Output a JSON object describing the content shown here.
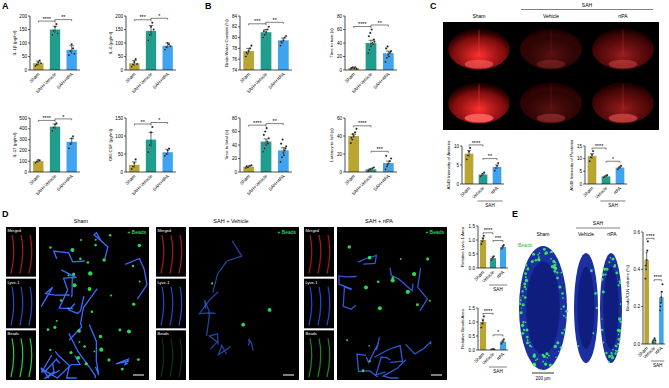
{
  "chart_data": [
    {
      "type": "bar",
      "ylabel": "IL-1β (pg/ml)",
      "categories": [
        "Sham",
        "SAH+Vehicle",
        "SAH+rtPA"
      ],
      "values": [
        25,
        150,
        75
      ],
      "errors": [
        8,
        12,
        15
      ],
      "points": [
        [
          15,
          20,
          28,
          35,
          25
        ],
        [
          130,
          145,
          160,
          170,
          135
        ],
        [
          55,
          70,
          95,
          80,
          60
        ]
      ],
      "colors": [
        "#b9a532",
        "#1f9e8e",
        "#3ea4ef"
      ],
      "ylim": [
        0,
        200
      ],
      "yticks": [
        0,
        50,
        100,
        150,
        200
      ],
      "annotations": [
        {
          "between": [
            "Sham",
            "SAH+Vehicle"
          ],
          "label": "****"
        },
        {
          "between": [
            "SAH+Vehicle",
            "SAH+rtPA"
          ],
          "label": "**"
        }
      ]
    },
    {
      "type": "bar",
      "ylabel": "IL-6 (pg/ml)",
      "categories": [
        "Sham",
        "SAH+Vehicle",
        "SAH+rtPA"
      ],
      "values": [
        25,
        145,
        90
      ],
      "errors": [
        10,
        20,
        10
      ],
      "points": [
        [
          12,
          20,
          30,
          40,
          22
        ],
        [
          110,
          130,
          160,
          175,
          150
        ],
        [
          75,
          85,
          100,
          95,
          88
        ]
      ],
      "colors": [
        "#b9a532",
        "#1f9e8e",
        "#3ea4ef"
      ],
      "ylim": [
        0,
        200
      ],
      "yticks": [
        0,
        50,
        100,
        150,
        200
      ],
      "annotations": [
        {
          "between": [
            "Sham",
            "SAH+Vehicle"
          ],
          "label": "***"
        },
        {
          "between": [
            "SAH+Vehicle",
            "SAH+rtPA"
          ],
          "label": "*"
        }
      ]
    },
    {
      "type": "bar",
      "ylabel": "IL-17 (pg/ml)",
      "categories": [
        "Sham",
        "SAH+Vehicle",
        "SAH+rtPA"
      ],
      "values": [
        100,
        420,
        280
      ],
      "errors": [
        10,
        25,
        30
      ],
      "points": [
        [
          85,
          95,
          110,
          105
        ],
        [
          380,
          410,
          440,
          450
        ],
        [
          220,
          260,
          310,
          330
        ]
      ],
      "colors": [
        "#b9a532",
        "#1f9e8e",
        "#3ea4ef"
      ],
      "ylim": [
        0,
        500
      ],
      "yticks": [
        0,
        100,
        200,
        300,
        400,
        500
      ],
      "annotations": [
        {
          "between": [
            "Sham",
            "SAH+Vehicle"
          ],
          "label": "****"
        },
        {
          "between": [
            "SAH+Vehicle",
            "SAH+rtPA"
          ],
          "label": "*"
        }
      ]
    },
    {
      "type": "bar",
      "ylabel": "GM-CSF (pg/ml)",
      "categories": [
        "Sham",
        "SAH+Vehicle",
        "SAH+rtPA"
      ],
      "values": [
        20,
        90,
        55
      ],
      "errors": [
        8,
        20,
        8
      ],
      "points": [
        [
          8,
          15,
          25,
          35
        ],
        [
          55,
          75,
          110,
          125
        ],
        [
          45,
          50,
          60,
          65
        ]
      ],
      "colors": [
        "#b9a532",
        "#1f9e8e",
        "#3ea4ef"
      ],
      "ylim": [
        0,
        150
      ],
      "yticks": [
        0,
        50,
        100,
        150
      ],
      "annotations": [
        {
          "between": [
            "Sham",
            "SAH+Vehicle"
          ],
          "label": "**"
        },
        {
          "between": [
            "SAH+Vehicle",
            "SAH+rtPA"
          ],
          "label": "*"
        }
      ]
    },
    {
      "type": "bar",
      "ylabel": "Brain Water Content (%)",
      "categories": [
        "Sham",
        "SAH+Vehicle",
        "SAH+rtPA"
      ],
      "values": [
        77.5,
        81,
        79.5
      ],
      "errors": [
        0.5,
        0.5,
        0.4
      ],
      "points": [
        [
          76.5,
          77,
          77.5,
          78,
          78.5,
          77.2
        ],
        [
          80,
          80.5,
          81,
          81.5,
          82,
          81.2
        ],
        [
          78.5,
          79,
          79.5,
          80,
          80.3,
          79.2
        ]
      ],
      "colors": [
        "#b9a532",
        "#1f9e8e",
        "#3ea4ef"
      ],
      "ylim": [
        74,
        84
      ],
      "yticks": [
        74,
        76,
        78,
        80,
        82,
        84
      ],
      "annotations": [
        {
          "between": [
            "Sham",
            "SAH+Vehicle"
          ],
          "label": "***"
        },
        {
          "between": [
            "SAH+Vehicle",
            "SAH+rtPA"
          ],
          "label": "**"
        }
      ]
    },
    {
      "type": "bar",
      "ylabel": "Time to turn (s)",
      "categories": [
        "Sham",
        "SAH+Vehicle",
        "SAH+rtPA"
      ],
      "values": [
        3,
        40,
        25
      ],
      "errors": [
        0.5,
        4,
        3
      ],
      "points": [
        [
          2,
          3,
          3,
          4,
          2,
          3,
          4,
          3
        ],
        [
          25,
          30,
          35,
          40,
          45,
          50,
          55,
          60,
          38,
          42
        ],
        [
          12,
          18,
          22,
          25,
          28,
          32,
          35,
          20,
          27
        ]
      ],
      "colors": [
        "#b9a532",
        "#1f9e8e",
        "#3ea4ef"
      ],
      "ylim": [
        0,
        80
      ],
      "yticks": [
        0,
        20,
        40,
        60,
        80
      ],
      "annotations": [
        {
          "between": [
            "Sham",
            "SAH+Vehicle"
          ],
          "label": "****"
        },
        {
          "between": [
            "SAH+Vehicle",
            "SAH+rtPA"
          ],
          "label": "**"
        }
      ]
    },
    {
      "type": "bar",
      "ylabel": "Time to total (s)",
      "categories": [
        "Sham",
        "SAH+Vehicle",
        "SAH+rtPA"
      ],
      "values": [
        8,
        45,
        32
      ],
      "errors": [
        1,
        4,
        4
      ],
      "points": [
        [
          6,
          7,
          8,
          9,
          10,
          8,
          7
        ],
        [
          30,
          35,
          40,
          45,
          50,
          55,
          60,
          65,
          42
        ],
        [
          15,
          22,
          28,
          32,
          38,
          42,
          48,
          25,
          35
        ]
      ],
      "colors": [
        "#b9a532",
        "#1f9e8e",
        "#3ea4ef"
      ],
      "ylim": [
        0,
        80
      ],
      "yticks": [
        0,
        20,
        40,
        60,
        80
      ],
      "annotations": [
        {
          "between": [
            "Sham",
            "SAH+Vehicle"
          ],
          "label": "****"
        },
        {
          "between": [
            "SAH+Vehicle",
            "SAH+rtPA"
          ],
          "label": "**"
        }
      ]
    },
    {
      "type": "bar",
      "ylabel": "Latency to fall (s)",
      "categories": [
        "Sham",
        "SAH+Vehicle",
        "SAH+rtPA"
      ],
      "values": [
        40,
        3,
        10
      ],
      "errors": [
        2,
        1,
        2
      ],
      "points": [
        [
          32,
          36,
          40,
          44,
          48,
          38,
          42
        ],
        [
          1,
          2,
          3,
          4,
          5,
          2,
          3
        ],
        [
          3,
          6,
          9,
          12,
          15,
          18,
          8
        ]
      ],
      "colors": [
        "#b9a532",
        "#1f9e8e",
        "#3ea4ef"
      ],
      "ylim": [
        0,
        60
      ],
      "yticks": [
        0,
        20,
        40,
        60
      ],
      "annotations": [
        {
          "between": [
            "Sham",
            "SAH+Vehicle"
          ],
          "label": "****"
        },
        {
          "between": [
            "SAH+Vehicle",
            "SAH+rtPA"
          ],
          "label": "***"
        }
      ]
    },
    {
      "type": "bar",
      "ylabel": "A549 Intensity of Anterior",
      "categories": [
        "Sham",
        "Vehicle",
        "rtPA"
      ],
      "group_label": "SAH",
      "values": [
        8,
        2.5,
        4.5
      ],
      "errors": [
        0.8,
        0.3,
        0.5
      ],
      "points": [
        [
          6.5,
          7.5,
          8.5,
          9.5
        ],
        [
          2,
          2.3,
          2.7,
          3
        ],
        [
          3.5,
          4.2,
          4.8,
          5.5
        ]
      ],
      "colors": [
        "#b9a532",
        "#1f9e8e",
        "#3ea4ef"
      ],
      "ylim": [
        0,
        10
      ],
      "yticks": [
        0,
        5,
        10
      ],
      "annotations": [
        {
          "between": [
            "Sham",
            "Vehicle"
          ],
          "label": "****"
        },
        {
          "between": [
            "Vehicle",
            "rtPA"
          ],
          "label": "**"
        }
      ]
    },
    {
      "type": "bar",
      "ylabel": "A549 Intensity of Posterior",
      "categories": [
        "Sham",
        "Vehicle",
        "rtPA"
      ],
      "group_label": "SAH",
      "values": [
        11,
        3,
        6.5
      ],
      "errors": [
        1,
        0.3,
        0.5
      ],
      "points": [
        [
          9,
          10.5,
          11.5,
          13
        ],
        [
          2.5,
          2.8,
          3.2,
          3.5
        ],
        [
          5.8,
          6.3,
          6.7,
          7.2
        ]
      ],
      "colors": [
        "#b9a532",
        "#1f9e8e",
        "#3ea4ef"
      ],
      "ylim": [
        0,
        15
      ],
      "yticks": [
        0,
        5,
        10,
        15
      ],
      "annotations": [
        {
          "between": [
            "Sham",
            "Vehicle"
          ],
          "label": "****"
        },
        {
          "between": [
            "Vehicle",
            "rtPA"
          ],
          "label": "*"
        }
      ]
    },
    {
      "type": "bar",
      "ylabel": "Relative Lyve-1 Area",
      "categories": [
        "Sham",
        "Vehicle",
        "rtPA"
      ],
      "group_label": "SAH",
      "values": [
        1.0,
        0.35,
        0.75
      ],
      "errors": [
        0.08,
        0.05,
        0.05
      ],
      "points": [
        [
          0.85,
          0.95,
          1.05,
          1.15
        ],
        [
          0.28,
          0.33,
          0.38,
          0.42
        ],
        [
          0.68,
          0.72,
          0.78,
          0.82
        ]
      ],
      "colors": [
        "#b9a532",
        "#1f9e8e",
        "#3ea4ef"
      ],
      "ylim": [
        0,
        1.5
      ],
      "yticks": [
        {
          "value": 0,
          "label": "0.0"
        },
        0.5,
        {
          "value": 1,
          "label": "1.0"
        },
        1.5
      ],
      "annotations": [
        {
          "between": [
            "Sham",
            "Vehicle"
          ],
          "label": "****"
        },
        {
          "between": [
            "Vehicle",
            "rtPA"
          ],
          "label": "***"
        }
      ]
    },
    {
      "type": "bar",
      "ylabel": "Relative Beads Area",
      "categories": [
        "Sham",
        "Vehicle",
        "rtPA"
      ],
      "group_label": "SAH",
      "values": [
        1.0,
        0.02,
        0.3
      ],
      "errors": [
        0.1,
        0.01,
        0.05
      ],
      "points": [
        [
          0.8,
          0.95,
          1.05,
          1.2
        ],
        [
          0.01,
          0.02,
          0.02,
          0.03
        ],
        [
          0.22,
          0.28,
          0.32,
          0.38
        ]
      ],
      "colors": [
        "#b9a532",
        "#1f9e8e",
        "#3ea4ef"
      ],
      "ylim": [
        0,
        1.5
      ],
      "yticks": [
        {
          "value": 0,
          "label": "0.0"
        },
        0.5,
        {
          "value": 1,
          "label": "1.0"
        },
        1.5
      ],
      "annotations": [
        {
          "between": [
            "Sham",
            "Vehicle"
          ],
          "label": "****"
        },
        {
          "between": [
            "Vehicle",
            "rtPA"
          ],
          "label": "*"
        }
      ]
    },
    {
      "type": "bar",
      "ylabel": "Beads/CLN volume (%)",
      "categories": [
        "Sham",
        "Vehicle",
        "rtPA"
      ],
      "group_label": "SAH",
      "values": [
        0.45,
        0.02,
        0.25
      ],
      "errors": [
        0.04,
        0.005,
        0.03
      ],
      "points": [
        [
          0.35,
          0.4,
          0.45,
          0.5,
          0.55,
          0.42
        ],
        [
          0.01,
          0.02,
          0.02,
          0.03,
          0.02
        ],
        [
          0.18,
          0.22,
          0.25,
          0.28,
          0.32,
          0.2
        ]
      ],
      "colors": [
        "#b9a532",
        "#1f9e8e",
        "#3ea4ef"
      ],
      "ylim": [
        0,
        0.6
      ],
      "yticks": [
        {
          "value": 0,
          "label": "0.0"
        },
        0.2,
        0.4,
        0.6
      ],
      "annotations": [
        {
          "between": [
            "Sham",
            "Vehicle"
          ],
          "label": "****"
        },
        {
          "between": [
            "Vehicle",
            "rtPA"
          ],
          "label": "****"
        }
      ]
    }
  ],
  "panel_labels": [
    "A",
    "B",
    "C",
    "D",
    "E"
  ],
  "images": {
    "C": {
      "columns": [
        "Sham",
        "Vehicle",
        "rtPA"
      ],
      "group": "SAH"
    },
    "D": {
      "columns": [
        "Sham",
        "SAH + Vehicle",
        "SAH + rtPA"
      ],
      "channels": [
        "Merged",
        "Lyve-1",
        "Beads"
      ],
      "overlay": "+ Beads"
    },
    "E": {
      "columns": [
        "Sham",
        "Vehicle",
        "rtPA"
      ],
      "group": "SAH",
      "stain": "Beads",
      "scale_bar": "200 μm"
    }
  }
}
